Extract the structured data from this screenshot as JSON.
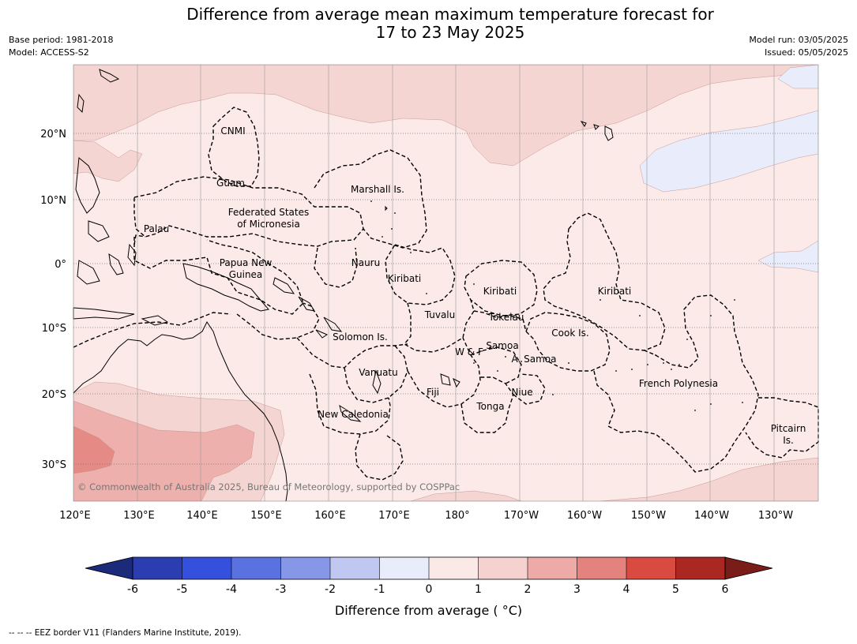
{
  "title": {
    "line1": "Difference from average mean maximum temperature forecast for",
    "line2": "17 to 23 May 2025"
  },
  "meta": {
    "base_period": "Base period: 1981-2018",
    "model": "Model: ACCESS-S2",
    "model_run": "Model run: 03/05/2025",
    "issued": "Issued: 05/05/2025"
  },
  "copyright": "© Commonwealth of Australia 2025, Bureau of Meteorology, supported by COSPPac",
  "footnote": "--  --  -- EEZ border V11 (Flanders Marine Institute, 2019).",
  "lat_labels": [
    "20°N",
    "10°N",
    "0°",
    "10°S",
    "20°S",
    "30°S"
  ],
  "lon_labels": [
    "120°E",
    "130°E",
    "140°E",
    "150°E",
    "160°E",
    "170°E",
    "180°",
    "170°W",
    "160°W",
    "150°W",
    "140°W",
    "130°W"
  ],
  "regions": [
    {
      "id": "cnmi",
      "label": "CNMI"
    },
    {
      "id": "guam",
      "label": "Guam"
    },
    {
      "id": "marshall",
      "label": "Marshall Is."
    },
    {
      "id": "fsm1",
      "label": "Federated States"
    },
    {
      "id": "fsm2",
      "label": "of Micronesia"
    },
    {
      "id": "palau",
      "label": "Palau"
    },
    {
      "id": "nauru",
      "label": "Nauru"
    },
    {
      "id": "png1",
      "label": "Papua New"
    },
    {
      "id": "png2",
      "label": "Guinea"
    },
    {
      "id": "kiribati-west",
      "label": "Kiribati"
    },
    {
      "id": "kiribati-central",
      "label": "Kiribati"
    },
    {
      "id": "kiribati-east",
      "label": "Kiribati"
    },
    {
      "id": "tuvalu",
      "label": "Tuvalu"
    },
    {
      "id": "tokelau",
      "label": "Tokelau"
    },
    {
      "id": "cook",
      "label": "Cook Is."
    },
    {
      "id": "solomon",
      "label": "Solomon Is."
    },
    {
      "id": "wf",
      "label": "W & F"
    },
    {
      "id": "samoa",
      "label": "Samoa"
    },
    {
      "id": "asamoa",
      "label": "A. Samoa"
    },
    {
      "id": "vanuatu",
      "label": "Vanuatu"
    },
    {
      "id": "fiji",
      "label": "Fiji"
    },
    {
      "id": "niue",
      "label": "Niue"
    },
    {
      "id": "frenchpoly",
      "label": "French Polynesia"
    },
    {
      "id": "tonga",
      "label": "Tonga"
    },
    {
      "id": "newcal",
      "label": "New Caledonia"
    },
    {
      "id": "pitcairn1",
      "label": "Pitcairn"
    },
    {
      "id": "pitcairn2",
      "label": "Is."
    }
  ],
  "colorbar": {
    "label": "Difference from average ( °C)",
    "ticks": [
      "-6",
      "-5",
      "-4",
      "-3",
      "-2",
      "-1",
      "0",
      "1",
      "2",
      "3",
      "4",
      "5",
      "6"
    ],
    "colors": [
      "#2a3eb1",
      "#3550dc",
      "#5a72e0",
      "#8797e8",
      "#c0c8f2",
      "#e8ecfb",
      "#fbe9e7",
      "#f5d2cf",
      "#edaaa6",
      "#e4837d",
      "#d94a40",
      "#ab2722"
    ],
    "under_color": "#1c2a7a",
    "over_color": "#7a1c18"
  },
  "map_colors": {
    "bin_0_1": "#fbeae8",
    "bin_1_2": "#f5d5d2",
    "bin_2_3": "#eeb0ac",
    "bin_3_4": "#e58a84",
    "bin_m1_0": "#e8ecfb"
  }
}
